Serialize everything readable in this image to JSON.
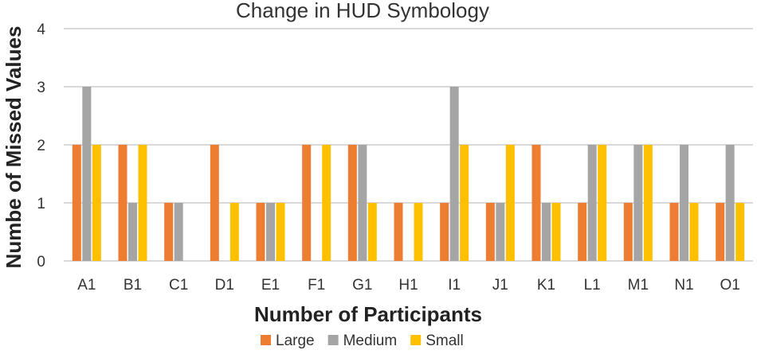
{
  "chart_data": {
    "type": "bar",
    "title": "Change in HUD Symbology",
    "xlabel": "Number of Participants",
    "ylabel": "Numbe of Missed Values",
    "categories": [
      "A1",
      "B1",
      "C1",
      "D1",
      "E1",
      "F1",
      "G1",
      "H1",
      "I1",
      "J1",
      "K1",
      "L1",
      "M1",
      "N1",
      "O1"
    ],
    "series": [
      {
        "name": "Large",
        "color": "#ED7D31",
        "values": [
          2,
          2,
          1,
          2,
          1,
          2,
          2,
          1,
          1,
          1,
          2,
          1,
          1,
          1,
          1
        ]
      },
      {
        "name": "Medium",
        "color": "#A5A5A5",
        "values": [
          3,
          1,
          1,
          0,
          1,
          0,
          2,
          0,
          3,
          1,
          1,
          2,
          2,
          2,
          2
        ]
      },
      {
        "name": "Small",
        "color": "#FFC000",
        "values": [
          2,
          2,
          0,
          1,
          1,
          2,
          1,
          1,
          2,
          2,
          1,
          2,
          2,
          1,
          1
        ]
      }
    ],
    "ylim": [
      0,
      4
    ],
    "yticks": [
      0,
      1,
      2,
      3,
      4
    ],
    "grid": true,
    "legend_position": "bottom"
  }
}
